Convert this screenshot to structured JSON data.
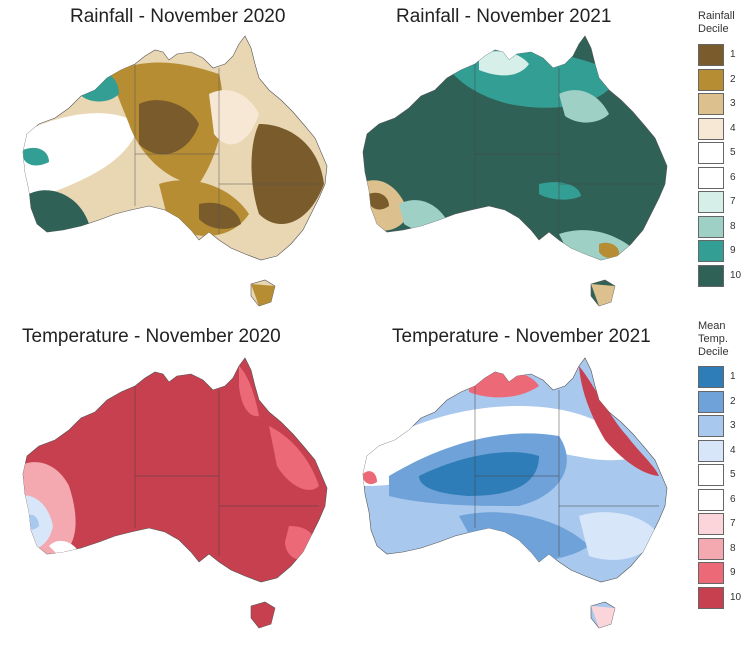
{
  "panels": [
    {
      "title": "Rainfall - November 2020",
      "base": "#9c7a2e"
    },
    {
      "title": "Rainfall - November 2021",
      "base": "#2f6157"
    },
    {
      "title": "Temperature - November 2020",
      "base": "#c7404f"
    },
    {
      "title": "Temperature - November 2021",
      "base": "#6ea2d8"
    }
  ],
  "rain_legend": {
    "title_line1": "Rainfall",
    "title_line2": "Decile",
    "items": [
      {
        "label": "1",
        "color": "#7a5b2c"
      },
      {
        "label": "2",
        "color": "#b68d33"
      },
      {
        "label": "3",
        "color": "#dcc08e"
      },
      {
        "label": "4",
        "color": "#f6e8d4"
      },
      {
        "label": "5",
        "color": "#ffffff"
      },
      {
        "label": "6",
        "color": "#ffffff"
      },
      {
        "label": "7",
        "color": "#d7efe9"
      },
      {
        "label": "8",
        "color": "#9fd0c6"
      },
      {
        "label": "9",
        "color": "#339e93"
      },
      {
        "label": "10",
        "color": "#2f6157"
      }
    ]
  },
  "temp_legend": {
    "title_line1": "Mean",
    "title_line2": "Temp.",
    "title_line3": "Decile",
    "items": [
      {
        "label": "1",
        "color": "#2f7db8"
      },
      {
        "label": "2",
        "color": "#6ea2d8"
      },
      {
        "label": "3",
        "color": "#a9c8ee"
      },
      {
        "label": "4",
        "color": "#d7e6f9"
      },
      {
        "label": "5",
        "color": "#ffffff"
      },
      {
        "label": "6",
        "color": "#ffffff"
      },
      {
        "label": "7",
        "color": "#fbd5d9"
      },
      {
        "label": "8",
        "color": "#f4a9b1"
      },
      {
        "label": "9",
        "color": "#ec6a78"
      },
      {
        "label": "10",
        "color": "#c7404f"
      }
    ]
  }
}
